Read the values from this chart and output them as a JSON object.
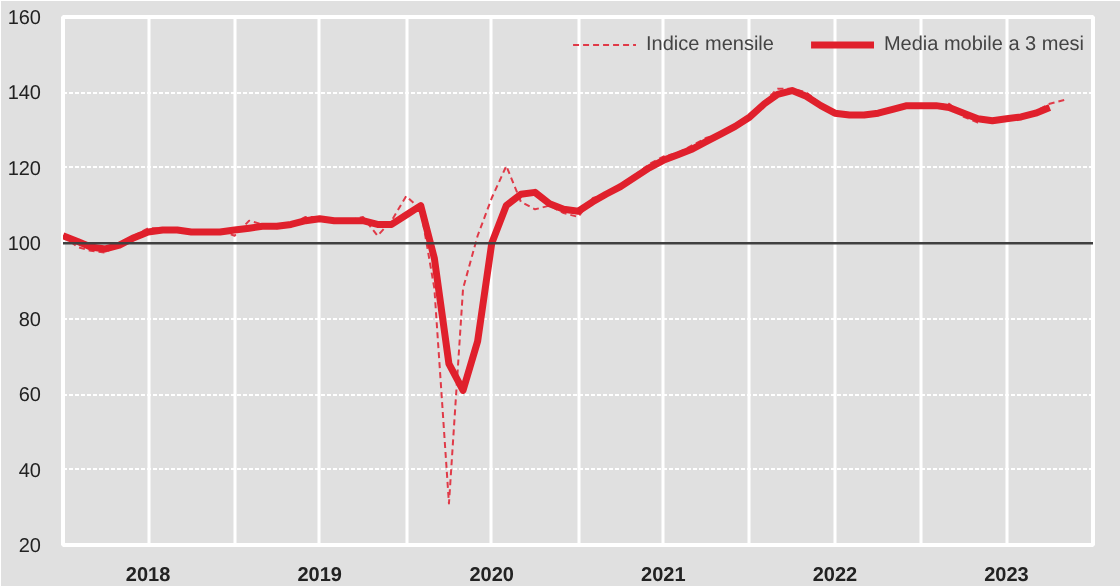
{
  "chart_data": {
    "type": "line",
    "x": [
      "2018-01",
      "2018-02",
      "2018-03",
      "2018-04",
      "2018-05",
      "2018-06",
      "2018-07",
      "2018-08",
      "2018-09",
      "2018-10",
      "2018-11",
      "2018-12",
      "2019-01",
      "2019-02",
      "2019-03",
      "2019-04",
      "2019-05",
      "2019-06",
      "2019-07",
      "2019-08",
      "2019-09",
      "2019-10",
      "2019-11",
      "2019-12",
      "2020-01",
      "2020-02",
      "2020-03",
      "2020-04",
      "2020-05",
      "2020-06",
      "2020-07",
      "2020-08",
      "2020-09",
      "2020-10",
      "2020-11",
      "2020-12",
      "2021-01",
      "2021-02",
      "2021-03",
      "2021-04",
      "2021-05",
      "2021-06",
      "2021-07",
      "2021-08",
      "2021-09",
      "2021-10",
      "2021-11",
      "2021-12",
      "2022-01",
      "2022-02",
      "2022-03",
      "2022-04",
      "2022-05",
      "2022-06",
      "2022-07",
      "2022-08",
      "2022-09",
      "2022-10",
      "2022-11",
      "2022-12",
      "2023-01",
      "2023-02",
      "2023-03",
      "2023-04",
      "2023-05",
      "2023-06",
      "2023-07",
      "2023-08",
      "2023-09",
      "2023-10",
      "2023-11"
    ],
    "series": [
      {
        "name": "Indice mensile",
        "color": "#e03a48",
        "line_style": "dashed",
        "values": [
          102,
          99,
          98,
          97.5,
          100,
          102,
          104,
          104,
          103.5,
          103,
          103,
          103.5,
          102,
          106,
          105,
          104,
          105,
          107,
          107,
          106,
          106,
          107,
          102,
          106,
          112.5,
          109,
          88,
          31,
          88,
          102,
          112,
          120.5,
          111,
          109,
          110,
          108,
          107,
          112,
          113,
          115,
          118,
          121,
          123,
          124,
          126,
          128,
          129,
          131,
          133.5,
          137.5,
          141,
          141,
          140,
          137,
          134.5,
          133.5,
          134.5,
          134.5,
          135.5,
          136.5,
          136.5,
          136.5,
          137,
          133.5,
          132,
          132.5,
          133,
          133.5,
          135,
          137,
          138
        ]
      },
      {
        "name": "Media mobile a 3 mesi",
        "color": "#e0202c",
        "line_style": "solid",
        "values": [
          102,
          100.5,
          99,
          98.5,
          99.5,
          101.5,
          103,
          103.5,
          103.5,
          103,
          103,
          103,
          103.5,
          104,
          104.5,
          104.5,
          105,
          106,
          106.5,
          106,
          106,
          106,
          105,
          105,
          107.5,
          110,
          96,
          68,
          61,
          74,
          100,
          110,
          113,
          113.5,
          110.5,
          109,
          108.5,
          111,
          113,
          115,
          117.5,
          120,
          122,
          123.5,
          125,
          127,
          129,
          131,
          133.5,
          137,
          139.5,
          140.5,
          139,
          136.5,
          134.5,
          134,
          134,
          134.5,
          135.5,
          136.5,
          136.5,
          136.5,
          136,
          134.5,
          133,
          132.5,
          133,
          133.5,
          134.5,
          136,
          null
        ]
      }
    ],
    "xlim": [
      "2018-01",
      "2024-01"
    ],
    "xticks": [
      {
        "value": "2018-01",
        "label": null
      },
      {
        "value": "2018-07",
        "label": "2018"
      },
      {
        "value": "2019-01",
        "label": null
      },
      {
        "value": "2019-07",
        "label": "2019"
      },
      {
        "value": "2020-01",
        "label": null
      },
      {
        "value": "2020-07",
        "label": "2020"
      },
      {
        "value": "2021-01",
        "label": null
      },
      {
        "value": "2021-07",
        "label": "2021"
      },
      {
        "value": "2022-01",
        "label": null
      },
      {
        "value": "2022-07",
        "label": "2022"
      },
      {
        "value": "2023-01",
        "label": null
      },
      {
        "value": "2023-07",
        "label": "2023"
      }
    ],
    "ylim": [
      20,
      160
    ],
    "yticks": [
      20,
      40,
      60,
      80,
      100,
      120,
      140,
      160
    ],
    "ref_lines": [
      {
        "axis": "y",
        "value": 100,
        "color": "#404040"
      }
    ],
    "grid": true,
    "legend": "top right",
    "marker": "none"
  }
}
